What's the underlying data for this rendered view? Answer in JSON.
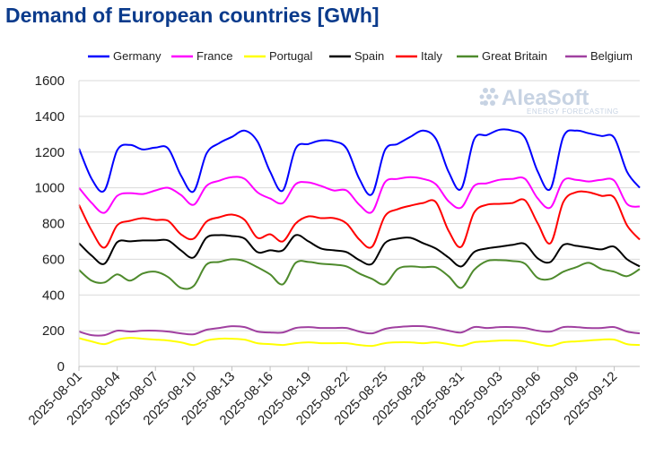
{
  "chart_data": {
    "type": "line",
    "title": "Demand of European countries [GWh]",
    "xlabel": "",
    "ylabel": "",
    "ylim": [
      0,
      1600
    ],
    "yticks": [
      0,
      200,
      400,
      600,
      800,
      1000,
      1200,
      1400,
      1600
    ],
    "grid": true,
    "legend_position": "top",
    "x": [
      "2025-08-01",
      "2025-08-02",
      "2025-08-03",
      "2025-08-04",
      "2025-08-05",
      "2025-08-06",
      "2025-08-07",
      "2025-08-08",
      "2025-08-09",
      "2025-08-10",
      "2025-08-11",
      "2025-08-12",
      "2025-08-13",
      "2025-08-14",
      "2025-08-15",
      "2025-08-16",
      "2025-08-17",
      "2025-08-18",
      "2025-08-19",
      "2025-08-20",
      "2025-08-21",
      "2025-08-22",
      "2025-08-23",
      "2025-08-24",
      "2025-08-25",
      "2025-08-26",
      "2025-08-27",
      "2025-08-28",
      "2025-08-29",
      "2025-08-30",
      "2025-08-31",
      "2025-09-01",
      "2025-09-02",
      "2025-09-03",
      "2025-09-04",
      "2025-09-05",
      "2025-09-06",
      "2025-09-07",
      "2025-09-08",
      "2025-09-09",
      "2025-09-10",
      "2025-09-11",
      "2025-09-12",
      "2025-09-13",
      "2025-09-14"
    ],
    "xtick_labels": [
      "2025-08-01",
      "2025-08-04",
      "2025-08-07",
      "2025-08-10",
      "2025-08-13",
      "2025-08-16",
      "2025-08-19",
      "2025-08-22",
      "2025-08-25",
      "2025-08-28",
      "2025-08-31",
      "2025-09-03",
      "2025-09-06",
      "2025-09-09",
      "2025-09-12"
    ],
    "series": [
      {
        "name": "Germany",
        "color": "#0000ff",
        "values": [
          1220,
          1050,
          985,
          1210,
          1240,
          1215,
          1225,
          1220,
          1070,
          980,
          1190,
          1250,
          1285,
          1320,
          1260,
          1090,
          985,
          1220,
          1245,
          1265,
          1260,
          1220,
          1050,
          965,
          1210,
          1245,
          1285,
          1320,
          1275,
          1090,
          995,
          1270,
          1295,
          1325,
          1320,
          1280,
          1090,
          995,
          1285,
          1320,
          1305,
          1290,
          1280,
          1090,
          1000
        ]
      },
      {
        "name": "France",
        "color": "#ff00ff",
        "values": [
          1000,
          915,
          860,
          955,
          970,
          965,
          985,
          1000,
          960,
          905,
          1010,
          1040,
          1060,
          1050,
          975,
          940,
          915,
          1020,
          1030,
          1010,
          985,
          985,
          905,
          865,
          1030,
          1050,
          1060,
          1050,
          1020,
          925,
          890,
          1010,
          1025,
          1045,
          1050,
          1050,
          940,
          890,
          1040,
          1045,
          1035,
          1045,
          1040,
          910,
          895
        ]
      },
      {
        "name": "Portugal",
        "color": "#ffff00",
        "values": [
          158,
          140,
          125,
          150,
          160,
          155,
          150,
          145,
          135,
          120,
          145,
          155,
          155,
          150,
          130,
          125,
          120,
          130,
          135,
          130,
          130,
          130,
          120,
          115,
          130,
          135,
          135,
          130,
          135,
          125,
          115,
          135,
          140,
          145,
          145,
          140,
          125,
          115,
          135,
          140,
          145,
          150,
          150,
          125,
          120
        ]
      },
      {
        "name": "Spain",
        "color": "#000000",
        "values": [
          690,
          620,
          575,
          695,
          700,
          705,
          705,
          705,
          650,
          610,
          720,
          735,
          730,
          715,
          640,
          650,
          650,
          735,
          700,
          660,
          650,
          640,
          595,
          575,
          690,
          715,
          720,
          690,
          660,
          610,
          560,
          640,
          660,
          670,
          680,
          685,
          605,
          585,
          680,
          675,
          665,
          655,
          670,
          600,
          560
        ]
      },
      {
        "name": "Italy",
        "color": "#ff0000",
        "values": [
          905,
          760,
          665,
          790,
          815,
          830,
          820,
          815,
          740,
          715,
          810,
          835,
          850,
          820,
          720,
          740,
          700,
          800,
          840,
          830,
          830,
          800,
          710,
          670,
          840,
          880,
          900,
          915,
          920,
          760,
          670,
          860,
          905,
          910,
          915,
          930,
          800,
          690,
          920,
          975,
          975,
          955,
          945,
          790,
          710
        ]
      },
      {
        "name": "Great Britain",
        "color": "#4e8a2c",
        "values": [
          540,
          480,
          470,
          515,
          480,
          520,
          530,
          500,
          440,
          450,
          570,
          585,
          600,
          590,
          555,
          515,
          460,
          580,
          585,
          575,
          570,
          560,
          520,
          490,
          460,
          545,
          560,
          555,
          555,
          505,
          440,
          540,
          590,
          595,
          590,
          575,
          495,
          490,
          530,
          555,
          580,
          545,
          530,
          505,
          545
        ]
      },
      {
        "name": "Belgium",
        "color": "#a040a0",
        "values": [
          195,
          175,
          175,
          200,
          195,
          200,
          200,
          195,
          185,
          180,
          205,
          215,
          225,
          220,
          195,
          190,
          190,
          215,
          220,
          215,
          215,
          215,
          195,
          185,
          210,
          220,
          225,
          225,
          215,
          200,
          190,
          220,
          215,
          220,
          220,
          215,
          200,
          195,
          220,
          220,
          215,
          215,
          220,
          195,
          185
        ]
      }
    ]
  },
  "watermark": {
    "brand": "AleaSoft",
    "tagline": "ENERGY FORECASTING"
  }
}
